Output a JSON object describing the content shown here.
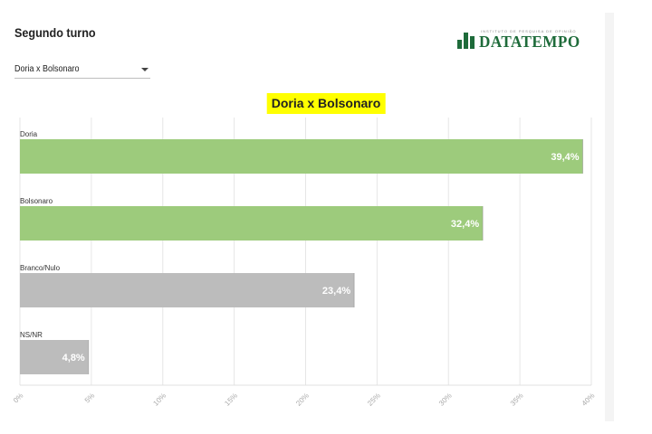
{
  "header": {
    "title": "Segundo turno",
    "logo_text": "DATATEMPO",
    "logo_small_text": "INSTITUTO DE PESQUISA DE OPINIÃO"
  },
  "filter": {
    "selected": "Doria x Bolsonaro"
  },
  "colors": {
    "candidate_bar": "#9dcb7c",
    "other_bar": "#bcbcbc",
    "title_highlight": "#ffff00",
    "logo": "#1e6b3a"
  },
  "chart_data": {
    "type": "bar",
    "orientation": "horizontal",
    "title": "Doria x Bolsonaro",
    "categories": [
      "Doria",
      "Bolsonaro",
      "Branco/Nulo",
      "NS/NR"
    ],
    "values": [
      39.4,
      32.4,
      23.4,
      4.8
    ],
    "value_labels": [
      "39,4%",
      "32,4%",
      "23,4%",
      "4,8%"
    ],
    "bar_colors": [
      "#9dcb7c",
      "#9dcb7c",
      "#bcbcbc",
      "#bcbcbc"
    ],
    "xlim": [
      0,
      40
    ],
    "x_ticks": [
      0,
      5,
      10,
      15,
      20,
      25,
      30,
      35,
      40
    ],
    "x_tick_labels": [
      "0%",
      "5%",
      "10%",
      "15%",
      "20%",
      "25%",
      "30%",
      "35%",
      "40%"
    ],
    "grid": true,
    "legend": "none"
  }
}
